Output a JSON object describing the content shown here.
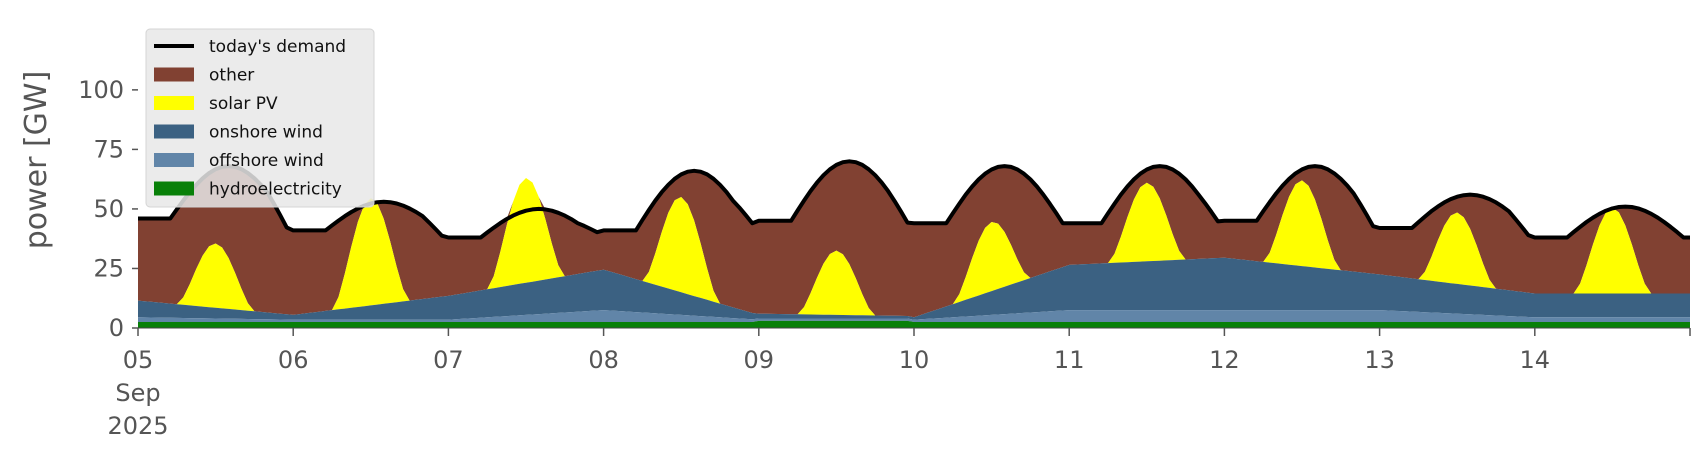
{
  "chart_data": {
    "type": "area",
    "stacked": true,
    "title": "",
    "xlabel": "",
    "ylabel": "power [GW]",
    "ylim": [
      0,
      118
    ],
    "xlim": [
      "2025-09-05T00:00",
      "2025-09-14T23:00"
    ],
    "grid": false,
    "legend_position": "top-left",
    "yticks": [
      0,
      25,
      50,
      75,
      100
    ],
    "xticks": [
      {
        "date": "2025-09-05",
        "label": "05",
        "sublabel": "Sep",
        "sublabel2": "2025"
      },
      {
        "date": "2025-09-06",
        "label": "06"
      },
      {
        "date": "2025-09-07",
        "label": "07"
      },
      {
        "date": "2025-09-08",
        "label": "08"
      },
      {
        "date": "2025-09-09",
        "label": "09"
      },
      {
        "date": "2025-09-10",
        "label": "10"
      },
      {
        "date": "2025-09-11",
        "label": "11"
      },
      {
        "date": "2025-09-12",
        "label": "12"
      },
      {
        "date": "2025-09-13",
        "label": "13"
      },
      {
        "date": "2025-09-14",
        "label": "14"
      }
    ],
    "legend": [
      {
        "name": "today's demand",
        "kind": "line",
        "color": "#000000"
      },
      {
        "name": "other",
        "kind": "patch",
        "color": "#814132"
      },
      {
        "name": "solar PV",
        "kind": "patch",
        "color": "#ffff00"
      },
      {
        "name": "onshore wind",
        "kind": "patch",
        "color": "#3b6182"
      },
      {
        "name": "offshore wind",
        "kind": "patch",
        "color": "#6185a8"
      },
      {
        "name": "hydroelectricity",
        "kind": "patch",
        "color": "#088008"
      }
    ],
    "daily": {
      "days": [
        "2025-09-05",
        "2025-09-06",
        "2025-09-07",
        "2025-09-08",
        "2025-09-09",
        "2025-09-10",
        "2025-09-11",
        "2025-09-12",
        "2025-09-13",
        "2025-09-14"
      ],
      "demand_night": [
        46,
        41,
        38,
        41,
        45,
        44,
        44,
        45,
        42,
        38
      ],
      "demand_peak": [
        68,
        53,
        50,
        66,
        70,
        68,
        68,
        68,
        56,
        51
      ],
      "solar_peak": [
        27,
        45,
        44,
        40,
        27,
        29,
        33,
        36,
        30,
        36
      ],
      "onshore_wind": [
        7,
        2,
        10,
        17,
        2,
        1,
        19,
        22,
        15,
        10
      ],
      "offshore_wind": [
        2,
        1,
        1,
        5,
        1,
        1,
        5,
        5,
        5,
        2
      ],
      "hydroelectricity": [
        2.5,
        2.5,
        2.5,
        2.5,
        3,
        2.5,
        2.5,
        2.5,
        2.5,
        2.5
      ]
    }
  }
}
